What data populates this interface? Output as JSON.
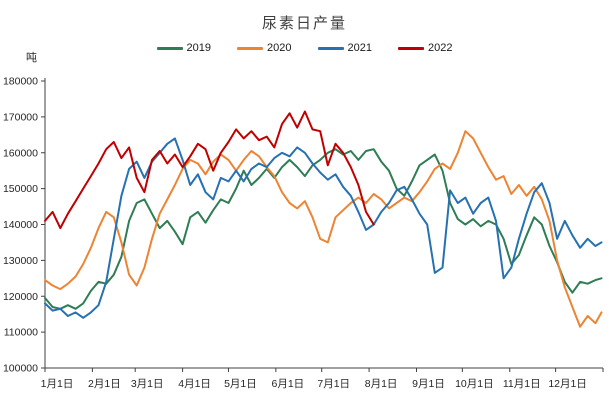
{
  "chart_data": {
    "type": "line",
    "title": "尿素日产量",
    "ylabel": "吨",
    "xlabel": "",
    "legend_position": "top",
    "grid": false,
    "ylim": [
      100000,
      180000
    ],
    "y_ticks": [
      100000,
      110000,
      120000,
      130000,
      140000,
      150000,
      160000,
      170000,
      180000
    ],
    "x_tick_labels": [
      "1月1日",
      "2月1日",
      "3月1日",
      "4月1日",
      "5月1日",
      "6月1日",
      "7月1日",
      "8月1日",
      "9月1日",
      "10月1日",
      "11月1日",
      "12月1日"
    ],
    "x_tick_days": [
      0,
      31,
      59,
      90,
      120,
      151,
      181,
      212,
      243,
      273,
      304,
      334
    ],
    "x_axis_end_day": 365,
    "x_days": [
      0,
      5,
      10,
      15,
      20,
      25,
      30,
      35,
      40,
      45,
      50,
      55,
      60,
      65,
      70,
      75,
      80,
      85,
      90,
      95,
      100,
      105,
      110,
      115,
      120,
      125,
      130,
      135,
      140,
      145,
      150,
      155,
      160,
      165,
      170,
      175,
      180,
      185,
      190,
      195,
      200,
      205,
      210,
      215,
      220,
      225,
      230,
      235,
      240,
      245,
      250,
      255,
      260,
      265,
      270,
      275,
      280,
      285,
      290,
      295,
      300,
      305,
      310,
      315,
      320,
      325,
      330,
      335,
      340,
      345,
      350,
      355,
      360,
      364
    ],
    "series": [
      {
        "name": "2019",
        "color": "#2e7d54",
        "values": [
          119500,
          117000,
          116500,
          117500,
          116500,
          118000,
          121500,
          124000,
          123500,
          126000,
          131000,
          141000,
          146000,
          147000,
          143000,
          139000,
          141000,
          138000,
          134500,
          142000,
          143500,
          140500,
          144000,
          147000,
          146000,
          150000,
          155000,
          151000,
          153000,
          155500,
          153000,
          156000,
          158000,
          156000,
          153500,
          156500,
          158000,
          160000,
          161000,
          159500,
          160500,
          158000,
          160500,
          161000,
          157500,
          155000,
          150000,
          148000,
          152000,
          156500,
          158000,
          159500,
          155000,
          146000,
          141500,
          140000,
          141500,
          139500,
          141000,
          140000,
          136000,
          129000,
          131500,
          137000,
          142000,
          140000,
          134000,
          129500,
          124000,
          121000,
          124000,
          123500,
          124500,
          125000
        ]
      },
      {
        "name": "2020",
        "color": "#ec8433",
        "values": [
          124500,
          123000,
          122000,
          123500,
          125500,
          129000,
          133500,
          139000,
          143500,
          142000,
          135000,
          126000,
          123000,
          128000,
          136000,
          143000,
          147000,
          151000,
          155500,
          158000,
          157000,
          154000,
          157500,
          159500,
          158000,
          155000,
          158000,
          160500,
          159000,
          156000,
          153500,
          149000,
          146000,
          144500,
          146500,
          142000,
          136000,
          135000,
          142000,
          144000,
          146000,
          147500,
          146000,
          148500,
          147000,
          144500,
          146000,
          147500,
          146500,
          149000,
          152000,
          155500,
          157000,
          155500,
          160000,
          166000,
          164000,
          160000,
          156000,
          152500,
          153500,
          148500,
          151000,
          148000,
          150500,
          147000,
          141000,
          130000,
          122500,
          117000,
          111500,
          114500,
          112500,
          115500
        ]
      },
      {
        "name": "2021",
        "color": "#2671b2",
        "values": [
          118000,
          116000,
          116500,
          114500,
          115500,
          114000,
          115500,
          117500,
          124000,
          136000,
          148000,
          155500,
          157500,
          153000,
          157500,
          160000,
          162500,
          164000,
          158000,
          151000,
          154000,
          149000,
          147000,
          153000,
          152000,
          155000,
          152000,
          155500,
          157000,
          156000,
          158500,
          160000,
          159000,
          161500,
          160000,
          157000,
          154500,
          152500,
          154000,
          150500,
          148000,
          143500,
          138500,
          140000,
          143500,
          146000,
          149500,
          150500,
          147000,
          143000,
          140000,
          126500,
          128000,
          149500,
          146000,
          147500,
          143000,
          146000,
          147500,
          141000,
          125000,
          128000,
          136000,
          143000,
          149000,
          151500,
          146000,
          136000,
          141000,
          137000,
          133500,
          136000,
          134000,
          135000
        ]
      },
      {
        "name": "2022",
        "color": "#c00000",
        "values": [
          141000,
          143500,
          139000,
          143000,
          146500,
          150000,
          153500,
          157000,
          161000,
          163000,
          158500,
          161500,
          153000,
          149000,
          158000,
          160500,
          157000,
          159500,
          156000,
          159000,
          162500,
          161000,
          155000,
          160000,
          163000,
          166500,
          164000,
          166000,
          163500,
          164500,
          161500,
          168000,
          171000,
          167000,
          171500,
          166500,
          166000,
          156500,
          162500,
          160000,
          156000,
          151000,
          143500,
          140000,
          null,
          null,
          null,
          null,
          null,
          null,
          null,
          null,
          null,
          null,
          null,
          null,
          null,
          null,
          null,
          null,
          null,
          null,
          null,
          null,
          null,
          null,
          null,
          null,
          null,
          null,
          null,
          null,
          null,
          null
        ]
      }
    ]
  }
}
